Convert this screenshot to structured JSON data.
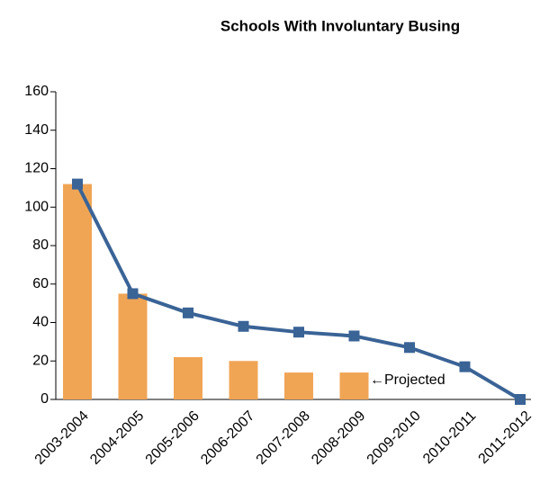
{
  "chart_data": {
    "type": "bar",
    "title": "Schools With Involuntary Busing",
    "categories": [
      "2003-2004",
      "2004-2005",
      "2005-2006",
      "2006-2007",
      "2007-2008",
      "2008-2009",
      "2009-2010",
      "2010-2011",
      "2011-2012"
    ],
    "series": [
      {
        "type": "bar",
        "color": "#f0a555",
        "values": [
          112,
          55,
          22,
          20,
          14,
          14,
          null,
          null,
          null
        ]
      },
      {
        "type": "line",
        "color": "#3a6396",
        "values": [
          112,
          55,
          45,
          38,
          35,
          33,
          27,
          17,
          0
        ]
      }
    ],
    "annotation": "←Projected",
    "ylim": [
      0,
      160
    ],
    "yticks": [
      0,
      20,
      40,
      60,
      80,
      100,
      120,
      140,
      160
    ]
  }
}
